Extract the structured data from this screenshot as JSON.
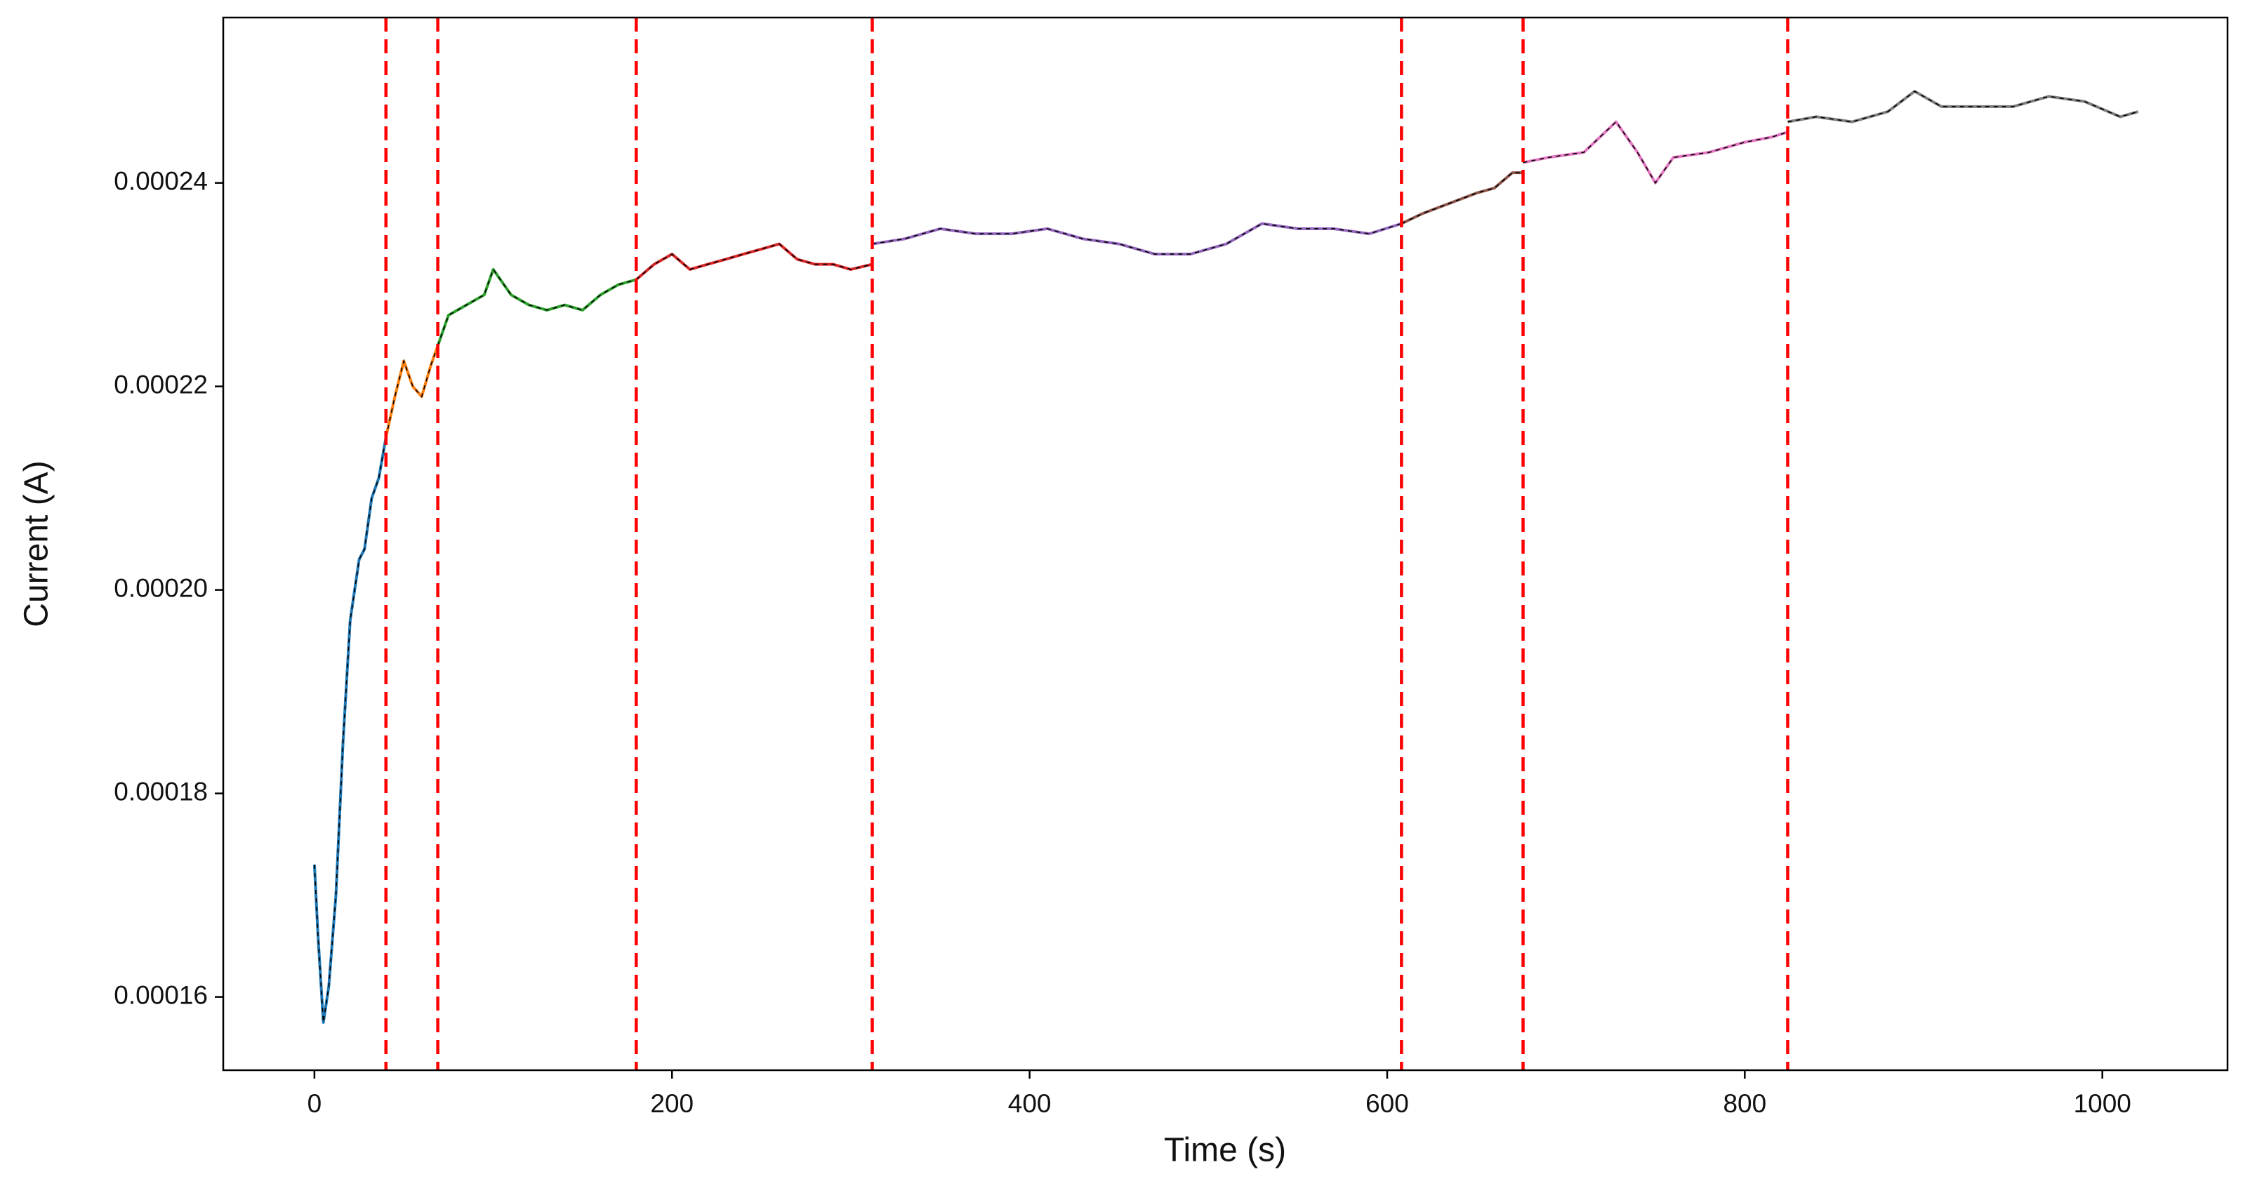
{
  "chart_data": {
    "type": "line",
    "xlabel": "Time (s)",
    "ylabel": "Current (A)",
    "xlim": [
      -51,
      1070
    ],
    "ylim": [
      0.0001528,
      0.00025625
    ],
    "xticks": [
      0,
      200,
      400,
      600,
      800,
      1000
    ],
    "yticks": [
      {
        "value": 0.00016,
        "label": "0.00016"
      },
      {
        "value": 0.00018,
        "label": "0.00018"
      },
      {
        "value": 0.0002,
        "label": "0.00020"
      },
      {
        "value": 0.00022,
        "label": "0.00022"
      },
      {
        "value": 0.00024,
        "label": "0.00024"
      }
    ],
    "change_points": [
      40,
      69,
      180,
      312,
      608,
      676,
      824
    ],
    "change_point_color": "#ff0000",
    "series": [
      {
        "color": "#1f77b4",
        "x": [
          0,
          2,
          5,
          8,
          12,
          16,
          20,
          25,
          28,
          32,
          36,
          40
        ],
        "values": [
          0.000173,
          0.000166,
          0.0001575,
          0.000161,
          0.00017,
          0.000185,
          0.000197,
          0.000203,
          0.000204,
          0.000209,
          0.000211,
          0.000215
        ]
      },
      {
        "color": "#ff7f0e",
        "x": [
          40,
          45,
          50,
          55,
          60,
          65,
          69
        ],
        "values": [
          0.000215,
          0.000219,
          0.0002225,
          0.00022,
          0.000219,
          0.000222,
          0.000224
        ]
      },
      {
        "color": "#2ca02c",
        "x": [
          69,
          75,
          85,
          95,
          100,
          110,
          120,
          130,
          140,
          150,
          160,
          170,
          180
        ],
        "values": [
          0.000224,
          0.000227,
          0.000228,
          0.000229,
          0.0002315,
          0.000229,
          0.000228,
          0.0002275,
          0.000228,
          0.0002275,
          0.000229,
          0.00023,
          0.0002305
        ]
      },
      {
        "color": "#d62728",
        "x": [
          180,
          190,
          200,
          210,
          220,
          230,
          240,
          250,
          260,
          270,
          280,
          290,
          300,
          312
        ],
        "values": [
          0.0002305,
          0.000232,
          0.000233,
          0.0002315,
          0.000232,
          0.0002325,
          0.000233,
          0.0002335,
          0.000234,
          0.0002325,
          0.000232,
          0.000232,
          0.0002315,
          0.000232
        ]
      },
      {
        "color": "#9467bd",
        "x": [
          312,
          330,
          350,
          370,
          390,
          410,
          430,
          450,
          470,
          490,
          510,
          530,
          550,
          570,
          590,
          608
        ],
        "values": [
          0.000234,
          0.0002345,
          0.0002355,
          0.000235,
          0.000235,
          0.0002355,
          0.0002345,
          0.000234,
          0.000233,
          0.000233,
          0.000234,
          0.000236,
          0.0002355,
          0.0002355,
          0.000235,
          0.000236
        ]
      },
      {
        "color": "#8c564b",
        "x": [
          608,
          620,
          635,
          650,
          660,
          670,
          676
        ],
        "values": [
          0.000236,
          0.000237,
          0.000238,
          0.000239,
          0.0002395,
          0.000241,
          0.000241
        ]
      },
      {
        "color": "#e377c2",
        "x": [
          676,
          690,
          710,
          728,
          740,
          750,
          760,
          780,
          800,
          815,
          824
        ],
        "values": [
          0.000242,
          0.0002425,
          0.000243,
          0.000246,
          0.000243,
          0.00024,
          0.0002425,
          0.000243,
          0.000244,
          0.0002445,
          0.000245
        ]
      },
      {
        "color": "#7f7f7f",
        "x": [
          824,
          840,
          860,
          880,
          895,
          910,
          930,
          950,
          970,
          990,
          1010,
          1020
        ],
        "values": [
          0.000246,
          0.0002465,
          0.000246,
          0.000247,
          0.000249,
          0.0002475,
          0.0002475,
          0.0002475,
          0.0002485,
          0.000248,
          0.0002465,
          0.000247
        ]
      }
    ]
  }
}
